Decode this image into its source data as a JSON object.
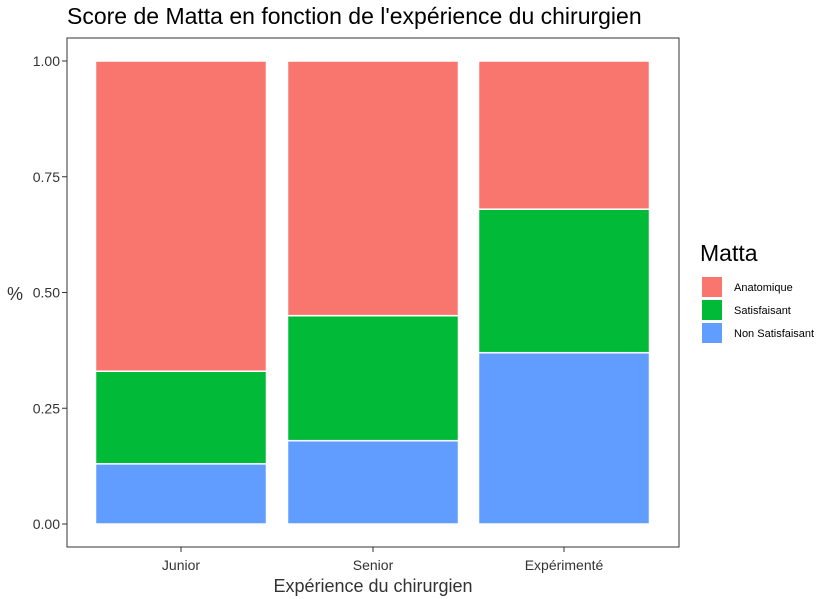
{
  "chart_data": {
    "type": "bar",
    "stacked": true,
    "title": "Score de Matta en fonction de l'expérience du chirurgien",
    "xlabel": "Expérience du chirurgien",
    "ylabel": "%",
    "ylim": [
      0,
      1
    ],
    "yticks": [
      "0.00",
      "0.25",
      "0.50",
      "0.75",
      "1.00"
    ],
    "grid": false,
    "legend": {
      "title": "Matta",
      "placement": "right"
    },
    "categories": [
      "Junior",
      "Senior",
      "Expérimenté"
    ],
    "series": [
      {
        "name": "Non Satisfaisant",
        "color": "#619CFF",
        "values": [
          0.13,
          0.18,
          0.37
        ]
      },
      {
        "name": "Satisfaisant",
        "color": "#00BA38",
        "values": [
          0.2,
          0.27,
          0.31
        ]
      },
      {
        "name": "Anatomique",
        "color": "#F8766D",
        "values": [
          0.67,
          0.55,
          0.32
        ]
      }
    ],
    "legend_order": [
      "Anatomique",
      "Satisfaisant",
      "Non Satisfaisant"
    ]
  }
}
